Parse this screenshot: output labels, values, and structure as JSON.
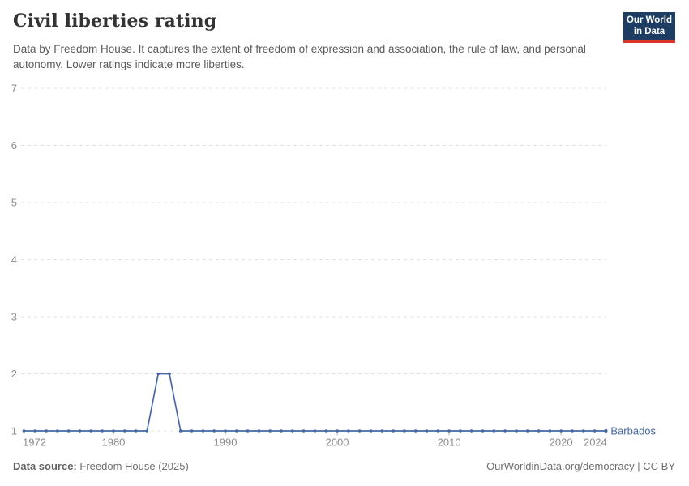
{
  "header": {
    "title": "Civil liberties rating",
    "subtitle": "Data by Freedom House. It captures the extent of freedom of expression and association, the rule of law, and personal autonomy. Lower ratings indicate more liberties."
  },
  "logo": {
    "line1": "Our World",
    "line2": "in Data",
    "bg_color": "#1d3d63",
    "accent_color": "#d8352b"
  },
  "chart_data": {
    "type": "line",
    "title": "Civil liberties rating",
    "xlabel": "",
    "ylabel": "",
    "ylim": [
      1,
      7
    ],
    "yticks": [
      1,
      2,
      3,
      4,
      5,
      6,
      7
    ],
    "xticks": [
      1972,
      1980,
      1990,
      2000,
      2010,
      2020,
      2024
    ],
    "grid": "horizontal-dashed",
    "legend_position": "end-of-line-label",
    "x": [
      1972,
      1973,
      1974,
      1975,
      1976,
      1977,
      1978,
      1979,
      1980,
      1981,
      1982,
      1983,
      1984,
      1985,
      1986,
      1987,
      1988,
      1989,
      1990,
      1991,
      1992,
      1993,
      1994,
      1995,
      1996,
      1997,
      1998,
      1999,
      2000,
      2001,
      2002,
      2003,
      2004,
      2005,
      2006,
      2007,
      2008,
      2009,
      2010,
      2011,
      2012,
      2013,
      2014,
      2015,
      2016,
      2017,
      2018,
      2019,
      2020,
      2021,
      2022,
      2023,
      2024
    ],
    "series": [
      {
        "name": "Barbados",
        "color": "#4568a5",
        "values": [
          1,
          1,
          1,
          1,
          1,
          1,
          1,
          1,
          1,
          1,
          1,
          1,
          2,
          2,
          1,
          1,
          1,
          1,
          1,
          1,
          1,
          1,
          1,
          1,
          1,
          1,
          1,
          1,
          1,
          1,
          1,
          1,
          1,
          1,
          1,
          1,
          1,
          1,
          1,
          1,
          1,
          1,
          1,
          1,
          1,
          1,
          1,
          1,
          1,
          1,
          1,
          1,
          1
        ]
      }
    ]
  },
  "footer": {
    "source_label": "Data source:",
    "source_value": "Freedom House (2025)",
    "link": "OurWorldinData.org/democracy",
    "separator": "|",
    "license": "CC BY"
  },
  "colors": {
    "grid": "#e3e3e3",
    "axis_text": "#8c8c8c",
    "tick_mark": "#b3b3b3",
    "title_text": "#333333",
    "subtitle_text": "#5a5a5a",
    "footer_text": "#6f6f6f"
  }
}
